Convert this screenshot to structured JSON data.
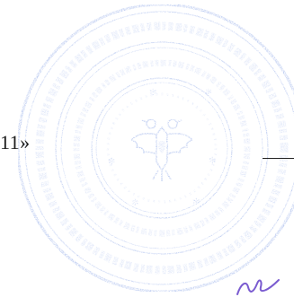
{
  "document": {
    "date_fragment": "11»"
  },
  "stamp": {
    "color": "#3f6ad6",
    "emblem": "double-headed-eagle-icon",
    "text": ""
  },
  "signature": {
    "color": "#7a5bd0"
  }
}
